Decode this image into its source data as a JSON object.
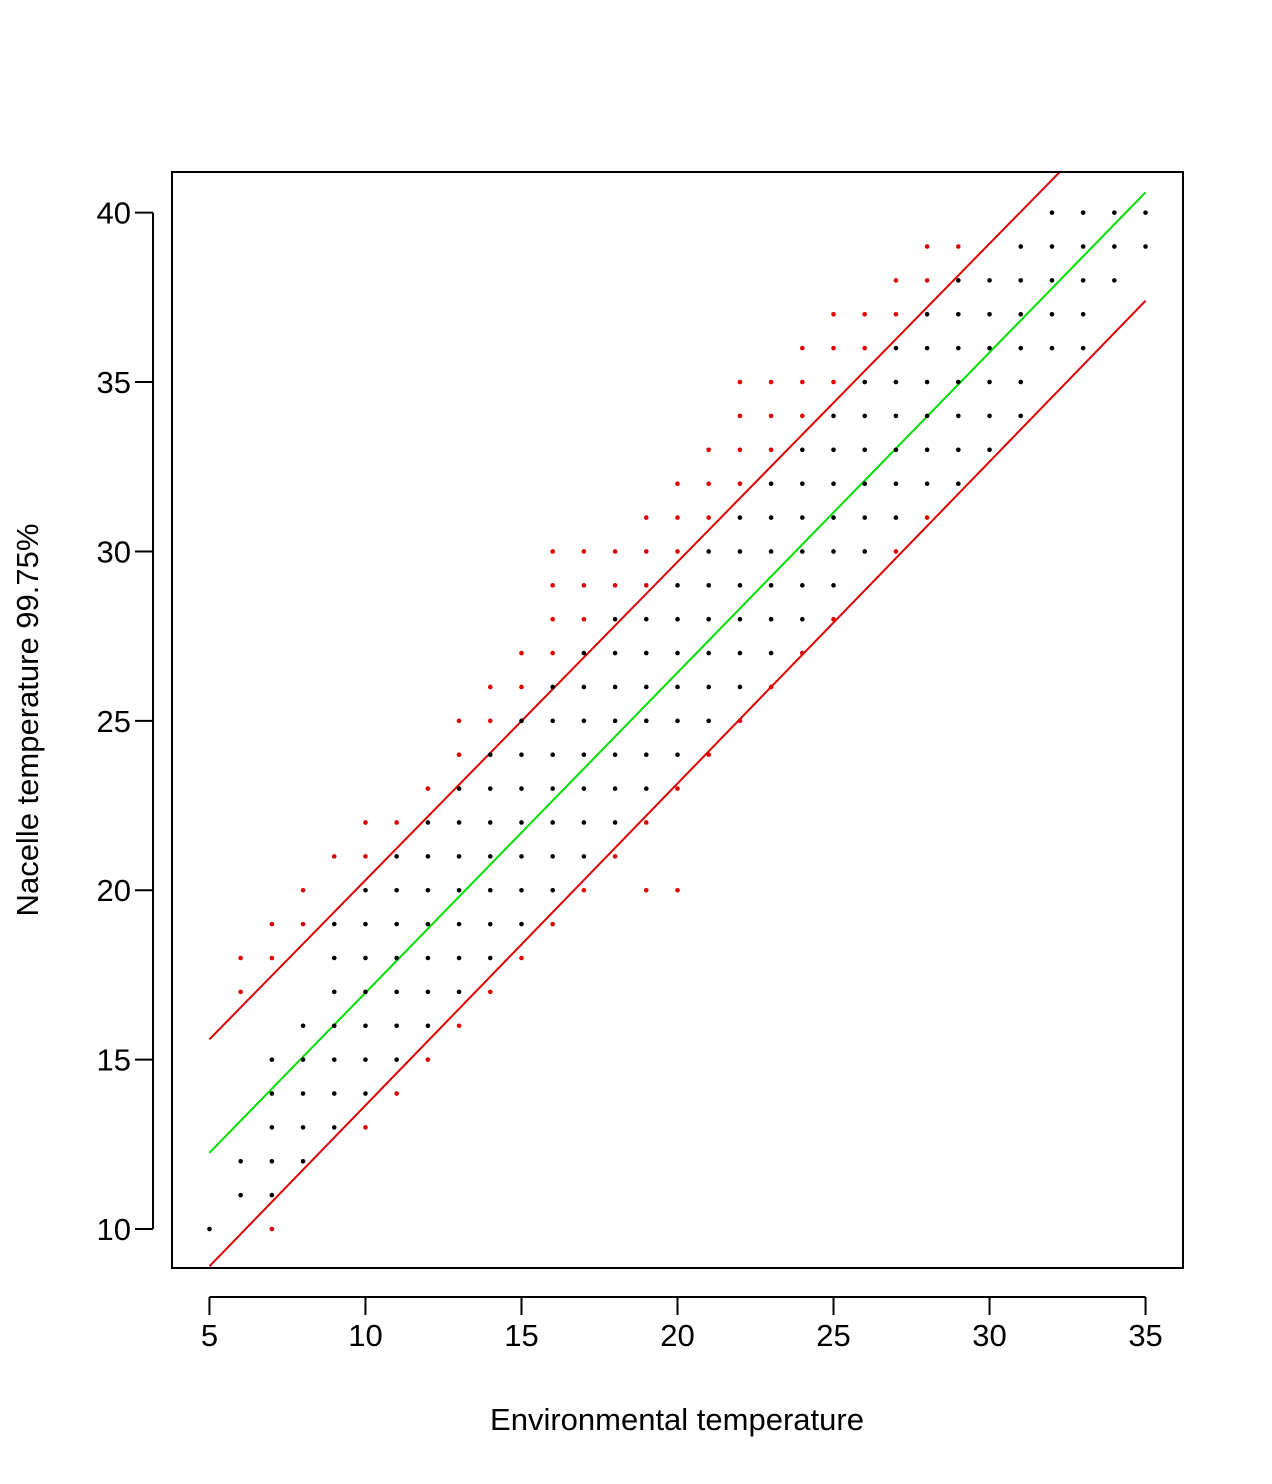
{
  "chart_data": {
    "type": "scatter",
    "xlabel": "Environmental temperature",
    "ylabel": "Nacelle temperature 99.75%",
    "xlim": [
      3.8,
      36.2
    ],
    "ylim": [
      8.85,
      41.2
    ],
    "x_ticks": [
      "5",
      "10",
      "15",
      "20",
      "25",
      "30",
      "35"
    ],
    "y_ticks": [
      "10",
      "15",
      "20",
      "25",
      "30",
      "35",
      "40"
    ],
    "grid": false,
    "legend": "none",
    "colors": {
      "normal": "#000000",
      "outlier": "#e00000",
      "fit_line": "#00dd00",
      "bound_line": "#dd0000"
    },
    "columns": [
      {
        "x": 5,
        "black": [
          10
        ],
        "red": []
      },
      {
        "x": 6,
        "black": [
          11,
          12
        ],
        "red": [
          17,
          18
        ]
      },
      {
        "x": 7,
        "black": [
          11,
          12,
          13,
          14,
          15
        ],
        "red": [
          10,
          18,
          19
        ]
      },
      {
        "x": 8,
        "black": [
          12,
          13,
          14,
          15,
          16
        ],
        "red": [
          19,
          20
        ]
      },
      {
        "x": 9,
        "black": [
          13,
          14,
          15,
          16,
          17,
          18,
          19
        ],
        "red": [
          21
        ]
      },
      {
        "x": 10,
        "black": [
          14,
          15,
          16,
          17,
          18,
          19,
          20
        ],
        "red": [
          13,
          21,
          22
        ]
      },
      {
        "x": 11,
        "black": [
          15,
          16,
          17,
          18,
          19,
          20,
          21
        ],
        "red": [
          14,
          22
        ]
      },
      {
        "x": 12,
        "black": [
          16,
          17,
          18,
          19,
          20,
          21,
          22
        ],
        "red": [
          15,
          23
        ]
      },
      {
        "x": 13,
        "black": [
          17,
          18,
          19,
          20,
          21,
          22,
          23
        ],
        "red": [
          16,
          24,
          25
        ]
      },
      {
        "x": 14,
        "black": [
          18,
          19,
          20,
          21,
          22,
          23,
          24
        ],
        "red": [
          17,
          25,
          26
        ]
      },
      {
        "x": 15,
        "black": [
          19,
          20,
          21,
          22,
          23,
          24,
          25
        ],
        "red": [
          18,
          26,
          27
        ]
      },
      {
        "x": 16,
        "black": [
          20,
          21,
          22,
          23,
          24,
          25,
          26
        ],
        "red": [
          19,
          27,
          28,
          29,
          30
        ]
      },
      {
        "x": 17,
        "black": [
          21,
          22,
          23,
          24,
          25,
          26,
          27
        ],
        "red": [
          20,
          28,
          29,
          30
        ]
      },
      {
        "x": 18,
        "black": [
          22,
          23,
          24,
          25,
          26,
          27,
          28
        ],
        "red": [
          21,
          29,
          30
        ]
      },
      {
        "x": 19,
        "black": [
          23,
          24,
          25,
          26,
          27,
          28
        ],
        "red": [
          20,
          22,
          29,
          30,
          31
        ]
      },
      {
        "x": 20,
        "black": [
          24,
          25,
          26,
          27,
          28,
          29
        ],
        "red": [
          20,
          23,
          30,
          31,
          32
        ]
      },
      {
        "x": 21,
        "black": [
          25,
          26,
          27,
          28,
          29,
          30
        ],
        "red": [
          24,
          31,
          32,
          33
        ]
      },
      {
        "x": 22,
        "black": [
          26,
          27,
          28,
          29,
          30,
          31
        ],
        "red": [
          25,
          32,
          33,
          34,
          35
        ]
      },
      {
        "x": 23,
        "black": [
          27,
          28,
          29,
          30,
          31,
          32
        ],
        "red": [
          26,
          33,
          34,
          35
        ]
      },
      {
        "x": 24,
        "black": [
          28,
          29,
          30,
          31,
          32,
          33
        ],
        "red": [
          27,
          34,
          35,
          36
        ]
      },
      {
        "x": 25,
        "black": [
          29,
          30,
          31,
          32,
          33,
          34
        ],
        "red": [
          28,
          35,
          36,
          37
        ]
      },
      {
        "x": 26,
        "black": [
          30,
          31,
          32,
          33,
          34,
          35
        ],
        "red": [
          36,
          37
        ]
      },
      {
        "x": 27,
        "black": [
          31,
          32,
          33,
          34,
          35,
          36
        ],
        "red": [
          30,
          37,
          38
        ]
      },
      {
        "x": 28,
        "black": [
          32,
          33,
          34,
          35,
          36,
          37
        ],
        "red": [
          31,
          38,
          39
        ]
      },
      {
        "x": 29,
        "black": [
          32,
          33,
          34,
          35,
          36,
          37,
          38
        ],
        "red": [
          39
        ]
      },
      {
        "x": 30,
        "black": [
          33,
          34,
          35,
          36,
          37,
          38
        ],
        "red": []
      },
      {
        "x": 31,
        "black": [
          34,
          35,
          36,
          37,
          38,
          39
        ],
        "red": []
      },
      {
        "x": 32,
        "black": [
          36,
          37,
          38,
          39,
          40
        ],
        "red": []
      },
      {
        "x": 33,
        "black": [
          36,
          37,
          38,
          39,
          40
        ],
        "red": []
      },
      {
        "x": 34,
        "black": [
          38,
          39,
          40
        ],
        "red": []
      },
      {
        "x": 35,
        "black": [
          39,
          40
        ],
        "red": []
      }
    ],
    "lines": [
      {
        "role": "fit",
        "color": "#00dd00",
        "points": [
          [
            5,
            12.25
          ],
          [
            35,
            40.6
          ]
        ]
      },
      {
        "role": "upper-bound",
        "color": "#dd0000",
        "points": [
          [
            5,
            15.6
          ],
          [
            32.25,
            41.2
          ]
        ]
      },
      {
        "role": "lower-bound",
        "color": "#dd0000",
        "points": [
          [
            5,
            8.9
          ],
          [
            35,
            37.4
          ]
        ]
      }
    ]
  }
}
